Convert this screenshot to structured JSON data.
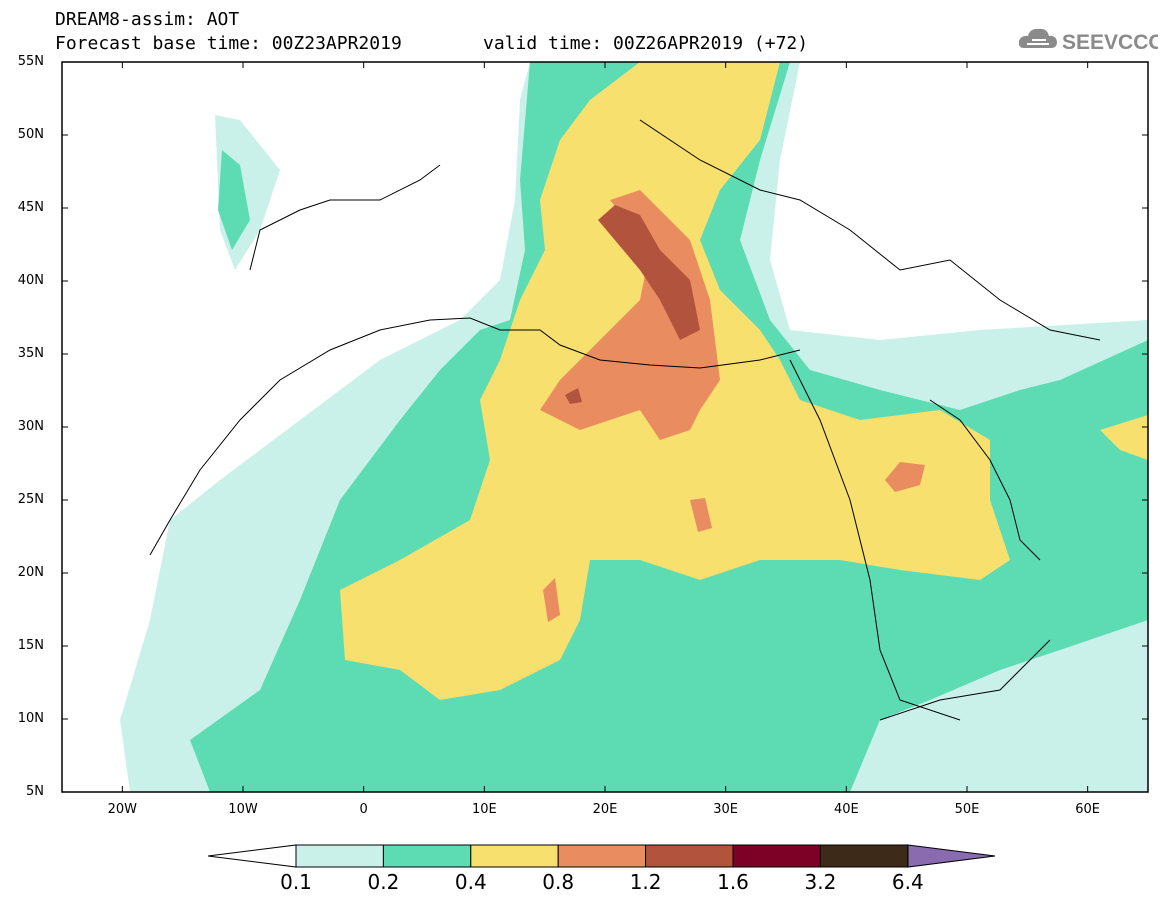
{
  "header": {
    "model_line": "DREAM8-assim: AOT",
    "base_line": "Forecast base time: 00Z23APR2019",
    "valid_line": "valid time: 00Z26APR2019 (+72)"
  },
  "logo": {
    "text": "SEEVCCC",
    "icon": "cloud-icon"
  },
  "axes": {
    "lat_labels": [
      "55N",
      "50N",
      "45N",
      "40N",
      "35N",
      "30N",
      "25N",
      "20N",
      "15N",
      "10N",
      "5N"
    ],
    "lon_labels": [
      "20W",
      "10W",
      "0",
      "10E",
      "20E",
      "30E",
      "40E",
      "50E",
      "60E"
    ]
  },
  "colorbar": {
    "labels": [
      "0.1",
      "0.2",
      "0.4",
      "0.8",
      "1.2",
      "1.6",
      "3.2",
      "6.4"
    ],
    "colors": [
      "#ffffff",
      "#c9f1ea",
      "#5ddbb3",
      "#f7e06e",
      "#e98c5f",
      "#b2533e",
      "#7d0026",
      "#3e2a18",
      "#8a6bb0"
    ]
  },
  "map": {
    "variable": "AOT",
    "lat_range": [
      5,
      55
    ],
    "lon_range": [
      -25,
      65
    ]
  }
}
